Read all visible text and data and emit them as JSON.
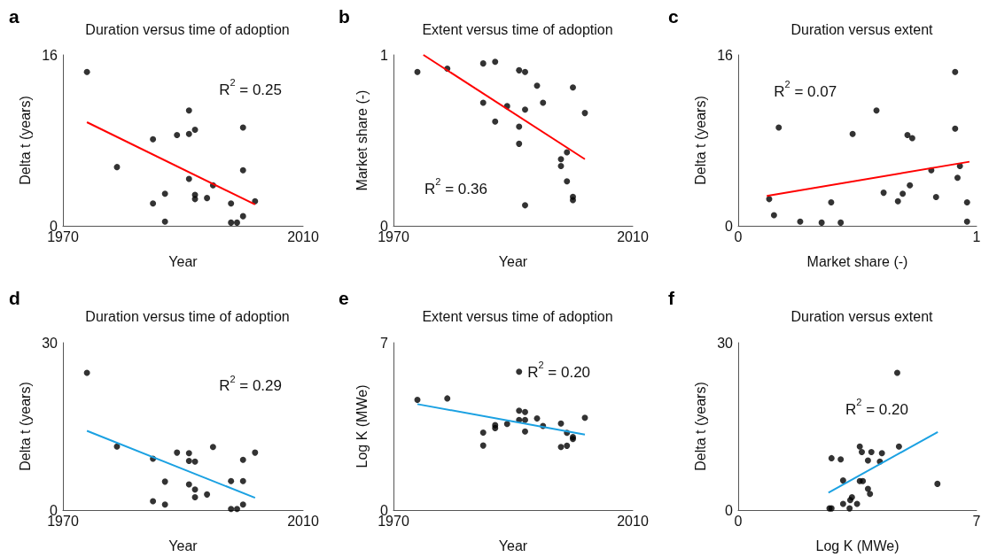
{
  "chart_data": [
    {
      "type": "scatter",
      "title": "Duration versus time of adoption",
      "xlabel": "Year",
      "ylabel": "Delta t (years)",
      "xlim": [
        1970,
        2010
      ],
      "xticks": [
        1970,
        2010
      ],
      "ylim": [
        0,
        16
      ],
      "yticks": [
        0,
        16
      ],
      "annotations": [
        "a",
        "R$^{2}$ = 0.25"
      ],
      "series": [
        {
          "color": "#000000",
          "marker": "circle",
          "x": [
            1974,
            1979,
            1985,
            1985,
            1987,
            1987,
            1989,
            1991,
            1991,
            1992,
            1991,
            1992,
            1992,
            1994,
            1995,
            1998,
            1998,
            1999,
            2000,
            2000,
            2000,
            2002
          ],
          "values": [
            14.4,
            5.5,
            8.1,
            2.1,
            3,
            0.4,
            8.5,
            10.8,
            8.6,
            9,
            4.4,
            2.9,
            2.5,
            2.6,
            3.8,
            2.1,
            0.3,
            0.3,
            9.2,
            5.2,
            0.9,
            2.3
          ]
        },
        {
          "type": "line",
          "marker": "none",
          "color": "#ff0000",
          "x": [
            1974,
            2002
          ],
          "values": [
            9.7,
            2
          ]
        }
      ]
    },
    {
      "type": "scatter",
      "title": "Extent versus time of adoption",
      "xlabel": "Year",
      "ylabel": "Market share (-)",
      "xlim": [
        1970,
        2010
      ],
      "xticks": [
        1970,
        2010
      ],
      "ylim": [
        0,
        1
      ],
      "yticks": [
        0,
        1
      ],
      "annotations": [
        "b",
        "R$^{2}$ = 0.36"
      ],
      "series": [
        {
          "color": "#000000",
          "marker": "circle",
          "x": [
            1974,
            1979,
            1985,
            1987,
            1985,
            1987,
            1989,
            1991,
            1992,
            1991,
            1991,
            1992,
            1992,
            1994,
            1995,
            1998,
            1998,
            1999,
            1999,
            2000,
            2000,
            2000,
            2002
          ],
          "values": [
            0.9,
            0.92,
            0.95,
            0.96,
            0.72,
            0.61,
            0.7,
            0.91,
            0.9,
            0.58,
            0.48,
            0.68,
            0.12,
            0.82,
            0.72,
            0.39,
            0.35,
            0.43,
            0.26,
            0.81,
            0.17,
            0.15,
            0.66
          ]
        },
        {
          "type": "line",
          "marker": "none",
          "color": "#ff0000",
          "x": [
            1975,
            2002
          ],
          "values": [
            1,
            0.39
          ]
        }
      ]
    },
    {
      "type": "scatter",
      "title": "Duration versus extent",
      "xlabel": "Market share (-)",
      "ylabel": "Delta t (years)",
      "xlim": [
        0,
        1
      ],
      "xticks": [
        0,
        1
      ],
      "ylim": [
        0,
        16
      ],
      "yticks": [
        0,
        16
      ],
      "annotations": [
        "c",
        "R$^{2}$ = 0.07"
      ],
      "series": [
        {
          "color": "#000000",
          "marker": "circle",
          "x": [
            0.13,
            0.15,
            0.17,
            0.26,
            0.35,
            0.39,
            0.43,
            0.48,
            0.58,
            0.61,
            0.67,
            0.69,
            0.71,
            0.72,
            0.73,
            0.81,
            0.83,
            0.91,
            0.91,
            0.92,
            0.93,
            0.96,
            0.96
          ],
          "values": [
            2.5,
            1,
            9.2,
            0.4,
            0.3,
            2.2,
            0.3,
            8.6,
            10.8,
            3.1,
            2.3,
            3,
            8.5,
            3.8,
            8.2,
            5.2,
            2.7,
            9.1,
            14.4,
            4.5,
            5.6,
            2.2,
            0.4
          ]
        },
        {
          "type": "line",
          "marker": "none",
          "color": "#ff0000",
          "x": [
            0.12,
            0.97
          ],
          "values": [
            2.8,
            6
          ]
        }
      ]
    },
    {
      "type": "scatter",
      "title": "Duration versus time of adoption",
      "xlabel": "Year",
      "ylabel": "Delta t (years)",
      "xlim": [
        1970,
        2010
      ],
      "xticks": [
        1970,
        2010
      ],
      "ylim": [
        0,
        30
      ],
      "yticks": [
        0,
        30
      ],
      "annotations": [
        "d",
        "R$^{2}$ = 0.29"
      ],
      "series": [
        {
          "color": "#000000",
          "marker": "circle",
          "x": [
            1974,
            1979,
            1985,
            1985,
            1987,
            1987,
            1989,
            1991,
            1991,
            1992,
            1991,
            1992,
            1992,
            1994,
            1995,
            1998,
            1998,
            1999,
            2000,
            2000,
            2000,
            2002
          ],
          "values": [
            24.6,
            11.4,
            9.2,
            1.6,
            5.1,
            1,
            10.3,
            10.2,
            8.8,
            8.7,
            4.6,
            3.7,
            2.3,
            2.8,
            11.3,
            5.2,
            0.2,
            0.2,
            9,
            5.2,
            1,
            10.3
          ]
        },
        {
          "type": "line",
          "marker": "none",
          "color": "#1ba1e2",
          "x": [
            1974,
            2002
          ],
          "values": [
            14.2,
            2.2
          ]
        }
      ]
    },
    {
      "type": "scatter",
      "title": "Extent versus time of adoption",
      "xlabel": "Year",
      "ylabel": "Log K (MWe)",
      "xlim": [
        1970,
        2010
      ],
      "xticks": [
        1970,
        2010
      ],
      "ylim": [
        0,
        7
      ],
      "yticks": [
        0,
        7
      ],
      "annotations": [
        "e",
        "R$^{2}$ = 0.20"
      ],
      "series": [
        {
          "color": "#000000",
          "marker": "circle",
          "x": [
            1974,
            1979,
            1985,
            1985,
            1987,
            1987,
            1989,
            1991,
            1991,
            1991,
            1992,
            1992,
            1992,
            1994,
            1995,
            1998,
            1998,
            1999,
            1999,
            2000,
            2000,
            2002
          ],
          "values": [
            4.61,
            4.67,
            3.24,
            2.7,
            3.55,
            3.43,
            3.6,
            5.79,
            4.16,
            3.77,
            4.1,
            3.77,
            3.29,
            3.83,
            3.52,
            3.62,
            2.64,
            3.23,
            2.69,
            3.05,
            2.97,
            3.86
          ]
        },
        {
          "type": "line",
          "marker": "none",
          "color": "#1ba1e2",
          "x": [
            1974,
            2002
          ],
          "values": [
            4.43,
            3.16
          ]
        }
      ]
    },
    {
      "type": "scatter",
      "title": "Duration versus extent",
      "xlabel": "Log K (MWe)",
      "ylabel": "Delta t (years)",
      "xlim": [
        0,
        7
      ],
      "xticks": [
        0,
        7
      ],
      "ylim": [
        0,
        30
      ],
      "yticks": [
        0,
        30
      ],
      "annotations": [
        "f",
        "R$^{2}$ = 0.20"
      ],
      "series": [
        {
          "color": "#000000",
          "marker": "circle",
          "x": [
            2.68,
            2.74,
            2.74,
            3.01,
            3.08,
            3.08,
            3.27,
            3.29,
            3.34,
            3.49,
            3.57,
            3.57,
            3.66,
            3.63,
            3.81,
            3.81,
            3.87,
            3.91,
            4.16,
            4.22,
            4.67,
            4.72,
            5.85
          ],
          "values": [
            0.3,
            0.3,
            9.3,
            9.1,
            5.3,
            1.1,
            0.3,
            1.8,
            2.3,
            1.1,
            11.4,
            5.2,
            5.2,
            10.4,
            8.9,
            3.8,
            2.9,
            10.4,
            8.7,
            10.2,
            24.6,
            11.4,
            4.7
          ]
        },
        {
          "type": "line",
          "marker": "none",
          "color": "#1ba1e2",
          "x": [
            2.65,
            5.86
          ],
          "values": [
            3.1,
            14
          ]
        }
      ]
    }
  ]
}
